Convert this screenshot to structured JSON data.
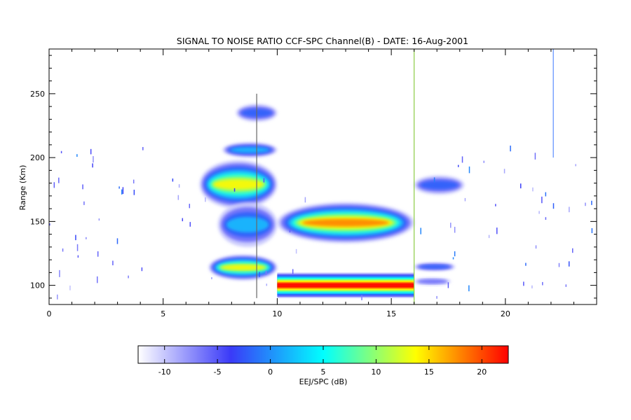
{
  "chart_data": {
    "type": "heatmap",
    "title": "SIGNAL TO NOISE RATIO CCF-SPC Channel(B) - DATE: 16-Aug-2001",
    "xlabel": "",
    "ylabel": "Range (Km)",
    "xlim": [
      0,
      24
    ],
    "ylim": [
      85,
      285
    ],
    "x_ticks": [
      0,
      5,
      10,
      15,
      20
    ],
    "y_ticks": [
      100,
      150,
      200,
      250
    ],
    "grid": false,
    "colorbar": {
      "label": "EEJ/SPC (dB)",
      "range": [
        -12.5,
        22.5
      ],
      "ticks": [
        -10,
        -5,
        0,
        5,
        10,
        15,
        20
      ],
      "colormap": [
        "#ffffff",
        "#3a3af8",
        "#00ffff",
        "#ffff00",
        "#ff0000"
      ],
      "placement": "bottom"
    },
    "regions": [
      {
        "name": "evening-layer-upper",
        "t": [
          8.2,
          10.0
        ],
        "range": [
          228,
          242
        ],
        "peak_db": 0
      },
      {
        "name": "evening-layer-205",
        "t": [
          7.6,
          10.0
        ],
        "range": [
          200,
          212
        ],
        "peak_db": 2
      },
      {
        "name": "evening-layer-175",
        "t": [
          6.6,
          10.0
        ],
        "range": [
          160,
          198
        ],
        "peak_db": 16
      },
      {
        "name": "evening-layer-150",
        "t": [
          7.4,
          10.0
        ],
        "range": [
          130,
          165
        ],
        "peak_db": 2
      },
      {
        "name": "evening-layer-115",
        "t": [
          7.0,
          10.0
        ],
        "range": [
          104,
          124
        ],
        "peak_db": 14
      },
      {
        "name": "midday-arc-150",
        "t": [
          10.0,
          16.0
        ],
        "range": [
          133,
          165
        ],
        "peak_db": 18
      },
      {
        "name": "eej-100",
        "t": [
          10.0,
          16.0
        ],
        "range": [
          90,
          110
        ],
        "peak_db": 22
      },
      {
        "name": "post-16-layer-178",
        "t": [
          16.0,
          18.2
        ],
        "range": [
          171,
          186
        ],
        "peak_db": 1
      },
      {
        "name": "post-16-layer-115",
        "t": [
          16.0,
          17.8
        ],
        "range": [
          111,
          118
        ],
        "peak_db": 0
      },
      {
        "name": "post-16-layer-103",
        "t": [
          16.0,
          17.6
        ],
        "range": [
          100,
          106
        ],
        "peak_db": -4
      }
    ],
    "vertical_lines": [
      {
        "t": 9.1,
        "range": [
          90,
          250
        ],
        "color": "#666666"
      },
      {
        "t": 16.0,
        "range": [
          85,
          285
        ],
        "color": "#8ccc44"
      },
      {
        "t": 22.1,
        "range": [
          200,
          285
        ],
        "color": "#5a8cff"
      }
    ]
  }
}
